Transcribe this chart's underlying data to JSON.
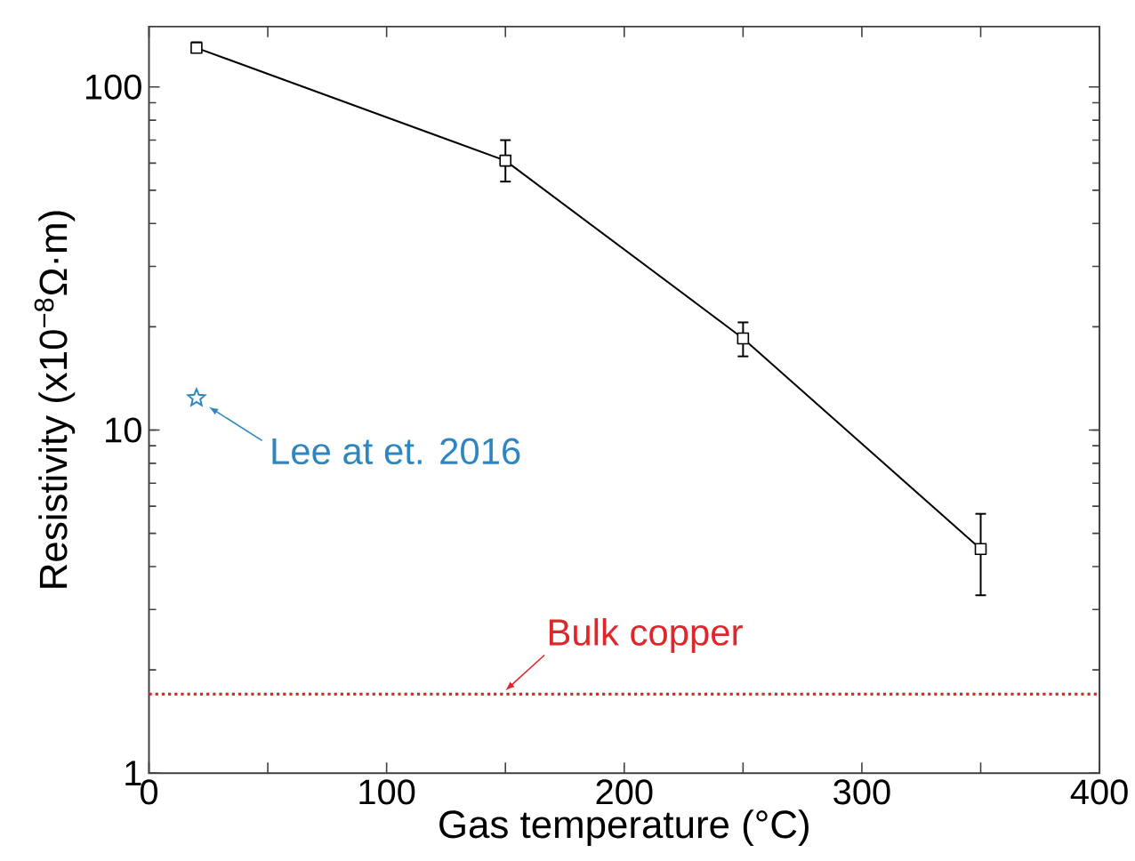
{
  "chart_data": {
    "type": "line",
    "xlabel": "Gas temperature (°C)",
    "ylabel": "Resistivity (x10$^{−8}$Ω·m)",
    "x": [
      20,
      150,
      250,
      350
    ],
    "series": [
      {
        "color": "#000000",
        "marker": "square",
        "line_style": "solid",
        "values": [
          130,
          61,
          18.5,
          4.5
        ],
        "errors": [
          [
            126,
            135
          ],
          [
            53,
            70
          ],
          [
            16.4,
            20.6
          ],
          [
            3.3,
            5.7
          ]
        ]
      },
      {
        "type": "scatter",
        "color": "#2e86c1",
        "marker": "star",
        "x": [
          20
        ],
        "values": [
          12.4
        ]
      }
    ],
    "annotations": [
      {
        "text": "Lee at et. 2016",
        "x": 20,
        "y": 12.4
      }
    ],
    "ref_lines": [
      {
        "axis": "y",
        "value": 1.7,
        "label": "Bulk copper",
        "color": "#e0262b",
        "line_style": "dotted"
      }
    ],
    "log": "y",
    "xlim": [
      0,
      400
    ],
    "ylim": [
      1,
      150
    ],
    "xticks": [
      0,
      {
        "value": 50,
        "label": null
      },
      100,
      {
        "value": 150,
        "label": null
      },
      200,
      {
        "value": 250,
        "label": null
      },
      300,
      {
        "value": 350,
        "label": null
      },
      400
    ],
    "yticks": [
      1,
      10,
      100
    ],
    "grid": false
  }
}
